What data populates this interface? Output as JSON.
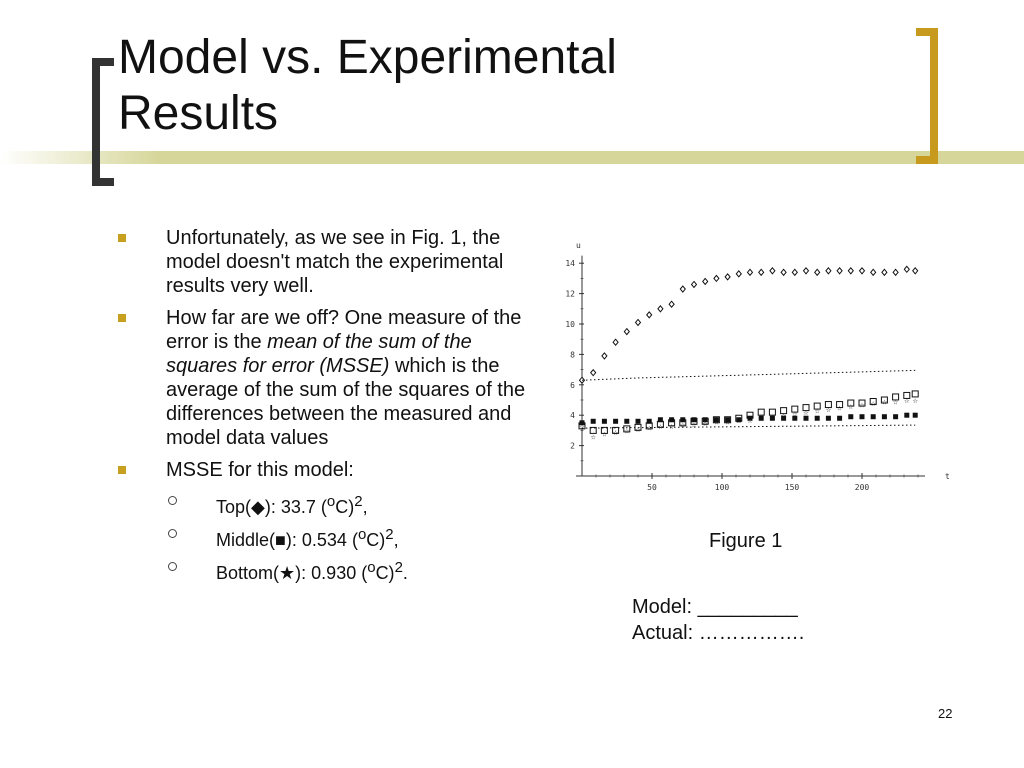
{
  "slide": {
    "title_line1": "Model vs. Experimental",
    "title_line2": "Results",
    "page_number": "22"
  },
  "bullets": [
    "Unfortunately, as we see in Fig. 1, the model doesn't match the experimental results very well.",
    "How far are we off?  One measure of the error is the ",
    "MSSE for this model:"
  ],
  "bullet2": {
    "italic": "mean of the sum of the squares for error (MSSE)",
    "rest": " which is the average of the sum of the squares of the differences between the measured and model data values"
  },
  "msse": {
    "top": {
      "name": "Top(",
      "symbol": "◆",
      "value": "):  33.7 (",
      "sup_o": "o",
      "unit": "C)",
      "sup_2": "2",
      "end": ","
    },
    "middle": {
      "name": "Middle(",
      "symbol": "■",
      "value": "):  0.534 (",
      "sup_o": "o",
      "unit": "C)",
      "sup_2": "2",
      "end": ","
    },
    "bottom": {
      "name": "Bottom(",
      "symbol": "★",
      "value": "):  0.930 (",
      "sup_o": "o",
      "unit": "C)",
      "sup_2": "2",
      "end": "."
    }
  },
  "figure": {
    "caption": "Figure 1",
    "legend_model": "Model:  _________",
    "legend_actual": "Actual: ……………."
  },
  "chart_data": {
    "type": "scatter",
    "title": "",
    "xlabel": "t",
    "ylabel": "u",
    "xlim": [
      0,
      245
    ],
    "ylim": [
      0,
      14.5
    ],
    "xticks": [
      50,
      100,
      150,
      200
    ],
    "yticks": [
      2,
      4,
      6,
      8,
      10,
      12,
      14
    ],
    "series": [
      {
        "marker": "diamond-open",
        "values": [
          [
            0,
            6.3
          ],
          [
            8,
            6.8
          ],
          [
            16,
            7.9
          ],
          [
            24,
            8.8
          ],
          [
            32,
            9.5
          ],
          [
            40,
            10.1
          ],
          [
            48,
            10.6
          ],
          [
            56,
            11.0
          ],
          [
            64,
            11.3
          ],
          [
            72,
            12.3
          ],
          [
            80,
            12.6
          ],
          [
            88,
            12.8
          ],
          [
            96,
            13.0
          ],
          [
            104,
            13.1
          ],
          [
            112,
            13.3
          ],
          [
            120,
            13.4
          ],
          [
            128,
            13.4
          ],
          [
            136,
            13.5
          ],
          [
            144,
            13.4
          ],
          [
            152,
            13.4
          ],
          [
            160,
            13.5
          ],
          [
            168,
            13.4
          ],
          [
            176,
            13.5
          ],
          [
            184,
            13.5
          ],
          [
            192,
            13.5
          ],
          [
            200,
            13.5
          ],
          [
            208,
            13.4
          ],
          [
            216,
            13.4
          ],
          [
            224,
            13.4
          ],
          [
            232,
            13.6
          ],
          [
            238,
            13.5
          ]
        ]
      },
      {
        "marker": "line-model-top",
        "values": [
          [
            0,
            6.3
          ],
          [
            40,
            6.45
          ],
          [
            80,
            6.55
          ],
          [
            120,
            6.65
          ],
          [
            160,
            6.75
          ],
          [
            200,
            6.85
          ],
          [
            238,
            6.95
          ]
        ]
      },
      {
        "marker": "square-open",
        "values": [
          [
            0,
            3.3
          ],
          [
            8,
            3.0
          ],
          [
            16,
            3.0
          ],
          [
            24,
            3.0
          ],
          [
            32,
            3.1
          ],
          [
            40,
            3.2
          ],
          [
            48,
            3.3
          ],
          [
            56,
            3.4
          ],
          [
            64,
            3.5
          ],
          [
            72,
            3.5
          ],
          [
            80,
            3.6
          ],
          [
            88,
            3.6
          ],
          [
            96,
            3.7
          ],
          [
            104,
            3.7
          ],
          [
            112,
            3.8
          ],
          [
            120,
            4.0
          ],
          [
            128,
            4.2
          ],
          [
            136,
            4.2
          ],
          [
            144,
            4.3
          ],
          [
            152,
            4.4
          ],
          [
            160,
            4.5
          ],
          [
            168,
            4.6
          ],
          [
            176,
            4.7
          ],
          [
            184,
            4.7
          ],
          [
            192,
            4.8
          ],
          [
            200,
            4.8
          ],
          [
            208,
            4.9
          ],
          [
            216,
            5.0
          ],
          [
            224,
            5.2
          ],
          [
            232,
            5.3
          ],
          [
            238,
            5.4
          ]
        ]
      },
      {
        "marker": "square-filled",
        "values": [
          [
            0,
            3.5
          ],
          [
            8,
            3.6
          ],
          [
            16,
            3.6
          ],
          [
            24,
            3.6
          ],
          [
            32,
            3.6
          ],
          [
            40,
            3.6
          ],
          [
            48,
            3.6
          ],
          [
            56,
            3.7
          ],
          [
            64,
            3.7
          ],
          [
            72,
            3.7
          ],
          [
            80,
            3.7
          ],
          [
            88,
            3.7
          ],
          [
            96,
            3.7
          ],
          [
            104,
            3.7
          ],
          [
            112,
            3.7
          ],
          [
            120,
            3.8
          ],
          [
            128,
            3.8
          ],
          [
            136,
            3.8
          ],
          [
            144,
            3.8
          ],
          [
            152,
            3.8
          ],
          [
            160,
            3.8
          ],
          [
            168,
            3.8
          ],
          [
            176,
            3.8
          ],
          [
            184,
            3.8
          ],
          [
            192,
            3.9
          ],
          [
            200,
            3.9
          ],
          [
            208,
            3.9
          ],
          [
            216,
            3.9
          ],
          [
            224,
            3.9
          ],
          [
            232,
            4.0
          ],
          [
            238,
            4.0
          ]
        ]
      },
      {
        "marker": "star",
        "values": [
          [
            0,
            3.3
          ],
          [
            8,
            2.6
          ],
          [
            16,
            2.8
          ],
          [
            24,
            2.9
          ],
          [
            32,
            3.0
          ],
          [
            40,
            3.1
          ],
          [
            48,
            3.2
          ],
          [
            56,
            3.3
          ],
          [
            64,
            3.3
          ],
          [
            72,
            3.4
          ],
          [
            80,
            3.4
          ],
          [
            88,
            3.5
          ],
          [
            96,
            3.6
          ],
          [
            104,
            3.6
          ],
          [
            112,
            3.7
          ],
          [
            120,
            3.7
          ],
          [
            128,
            3.8
          ],
          [
            136,
            3.9
          ],
          [
            144,
            4.0
          ],
          [
            152,
            4.1
          ],
          [
            160,
            4.2
          ],
          [
            168,
            4.3
          ],
          [
            176,
            4.4
          ],
          [
            184,
            4.5
          ],
          [
            192,
            4.6
          ],
          [
            200,
            4.7
          ],
          [
            208,
            4.8
          ],
          [
            216,
            4.9
          ],
          [
            224,
            4.9
          ],
          [
            232,
            5.0
          ],
          [
            238,
            5.0
          ]
        ]
      },
      {
        "marker": "line-model-bottom",
        "values": [
          [
            0,
            3.15
          ],
          [
            60,
            3.2
          ],
          [
            120,
            3.25
          ],
          [
            180,
            3.3
          ],
          [
            238,
            3.35
          ]
        ]
      }
    ]
  }
}
